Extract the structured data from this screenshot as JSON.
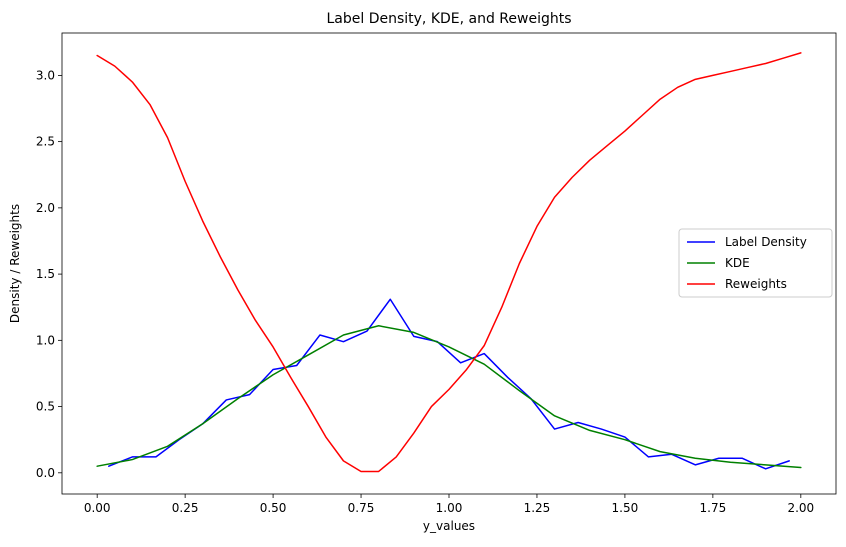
{
  "chart_data": {
    "type": "line",
    "title": "Label Density, KDE, and Reweights",
    "xlabel": "y_values",
    "ylabel": "Density / Reweights",
    "xlim": [
      -0.1,
      2.1
    ],
    "ylim": [
      -0.16,
      3.32
    ],
    "xticks": [
      0.0,
      0.25,
      0.5,
      0.75,
      1.0,
      1.25,
      1.5,
      1.75,
      2.0
    ],
    "xtick_labels": [
      "0.00",
      "0.25",
      "0.50",
      "0.75",
      "1.00",
      "1.25",
      "1.50",
      "1.75",
      "2.00"
    ],
    "yticks": [
      0.0,
      0.5,
      1.0,
      1.5,
      2.0,
      2.5,
      3.0
    ],
    "ytick_labels": [
      "0.0",
      "0.5",
      "1.0",
      "1.5",
      "2.0",
      "2.5",
      "3.0"
    ],
    "grid": false,
    "legend_position": "center-right",
    "series": [
      {
        "name": "Label Density",
        "color": "#0000ff",
        "x": [
          0.033,
          0.1,
          0.167,
          0.233,
          0.3,
          0.367,
          0.433,
          0.5,
          0.567,
          0.633,
          0.7,
          0.767,
          0.833,
          0.9,
          0.967,
          1.033,
          1.1,
          1.167,
          1.233,
          1.3,
          1.367,
          1.433,
          1.5,
          1.567,
          1.633,
          1.7,
          1.767,
          1.833,
          1.9,
          1.967
        ],
        "y": [
          0.05,
          0.12,
          0.12,
          0.25,
          0.37,
          0.55,
          0.59,
          0.78,
          0.81,
          1.04,
          0.99,
          1.07,
          1.31,
          1.03,
          0.99,
          0.83,
          0.9,
          0.72,
          0.56,
          0.33,
          0.38,
          0.33,
          0.27,
          0.12,
          0.14,
          0.06,
          0.11,
          0.11,
          0.03,
          0.09
        ]
      },
      {
        "name": "KDE",
        "color": "#008000",
        "x": [
          0.0,
          0.1,
          0.2,
          0.3,
          0.4,
          0.5,
          0.6,
          0.7,
          0.8,
          0.9,
          1.0,
          1.1,
          1.2,
          1.3,
          1.4,
          1.5,
          1.6,
          1.7,
          1.8,
          1.9,
          2.0
        ],
        "y": [
          0.05,
          0.1,
          0.2,
          0.37,
          0.56,
          0.74,
          0.89,
          1.04,
          1.11,
          1.06,
          0.95,
          0.82,
          0.62,
          0.43,
          0.32,
          0.25,
          0.16,
          0.11,
          0.08,
          0.06,
          0.04
        ]
      },
      {
        "name": "Reweights",
        "color": "#ff0000",
        "x": [
          0.0,
          0.05,
          0.1,
          0.15,
          0.2,
          0.25,
          0.3,
          0.35,
          0.4,
          0.45,
          0.5,
          0.55,
          0.6,
          0.65,
          0.7,
          0.75,
          0.8,
          0.85,
          0.9,
          0.95,
          1.0,
          1.05,
          1.1,
          1.15,
          1.2,
          1.25,
          1.3,
          1.35,
          1.4,
          1.45,
          1.5,
          1.55,
          1.6,
          1.65,
          1.7,
          1.75,
          1.8,
          1.85,
          1.9,
          1.95,
          2.0
        ],
        "y": [
          3.15,
          3.07,
          2.95,
          2.78,
          2.53,
          2.2,
          1.9,
          1.63,
          1.38,
          1.15,
          0.95,
          0.72,
          0.5,
          0.27,
          0.09,
          0.01,
          0.01,
          0.12,
          0.3,
          0.5,
          0.63,
          0.78,
          0.96,
          1.25,
          1.58,
          1.86,
          2.08,
          2.23,
          2.36,
          2.47,
          2.58,
          2.7,
          2.82,
          2.91,
          2.97,
          3.0,
          3.03,
          3.06,
          3.09,
          3.13,
          3.17
        ]
      }
    ]
  }
}
